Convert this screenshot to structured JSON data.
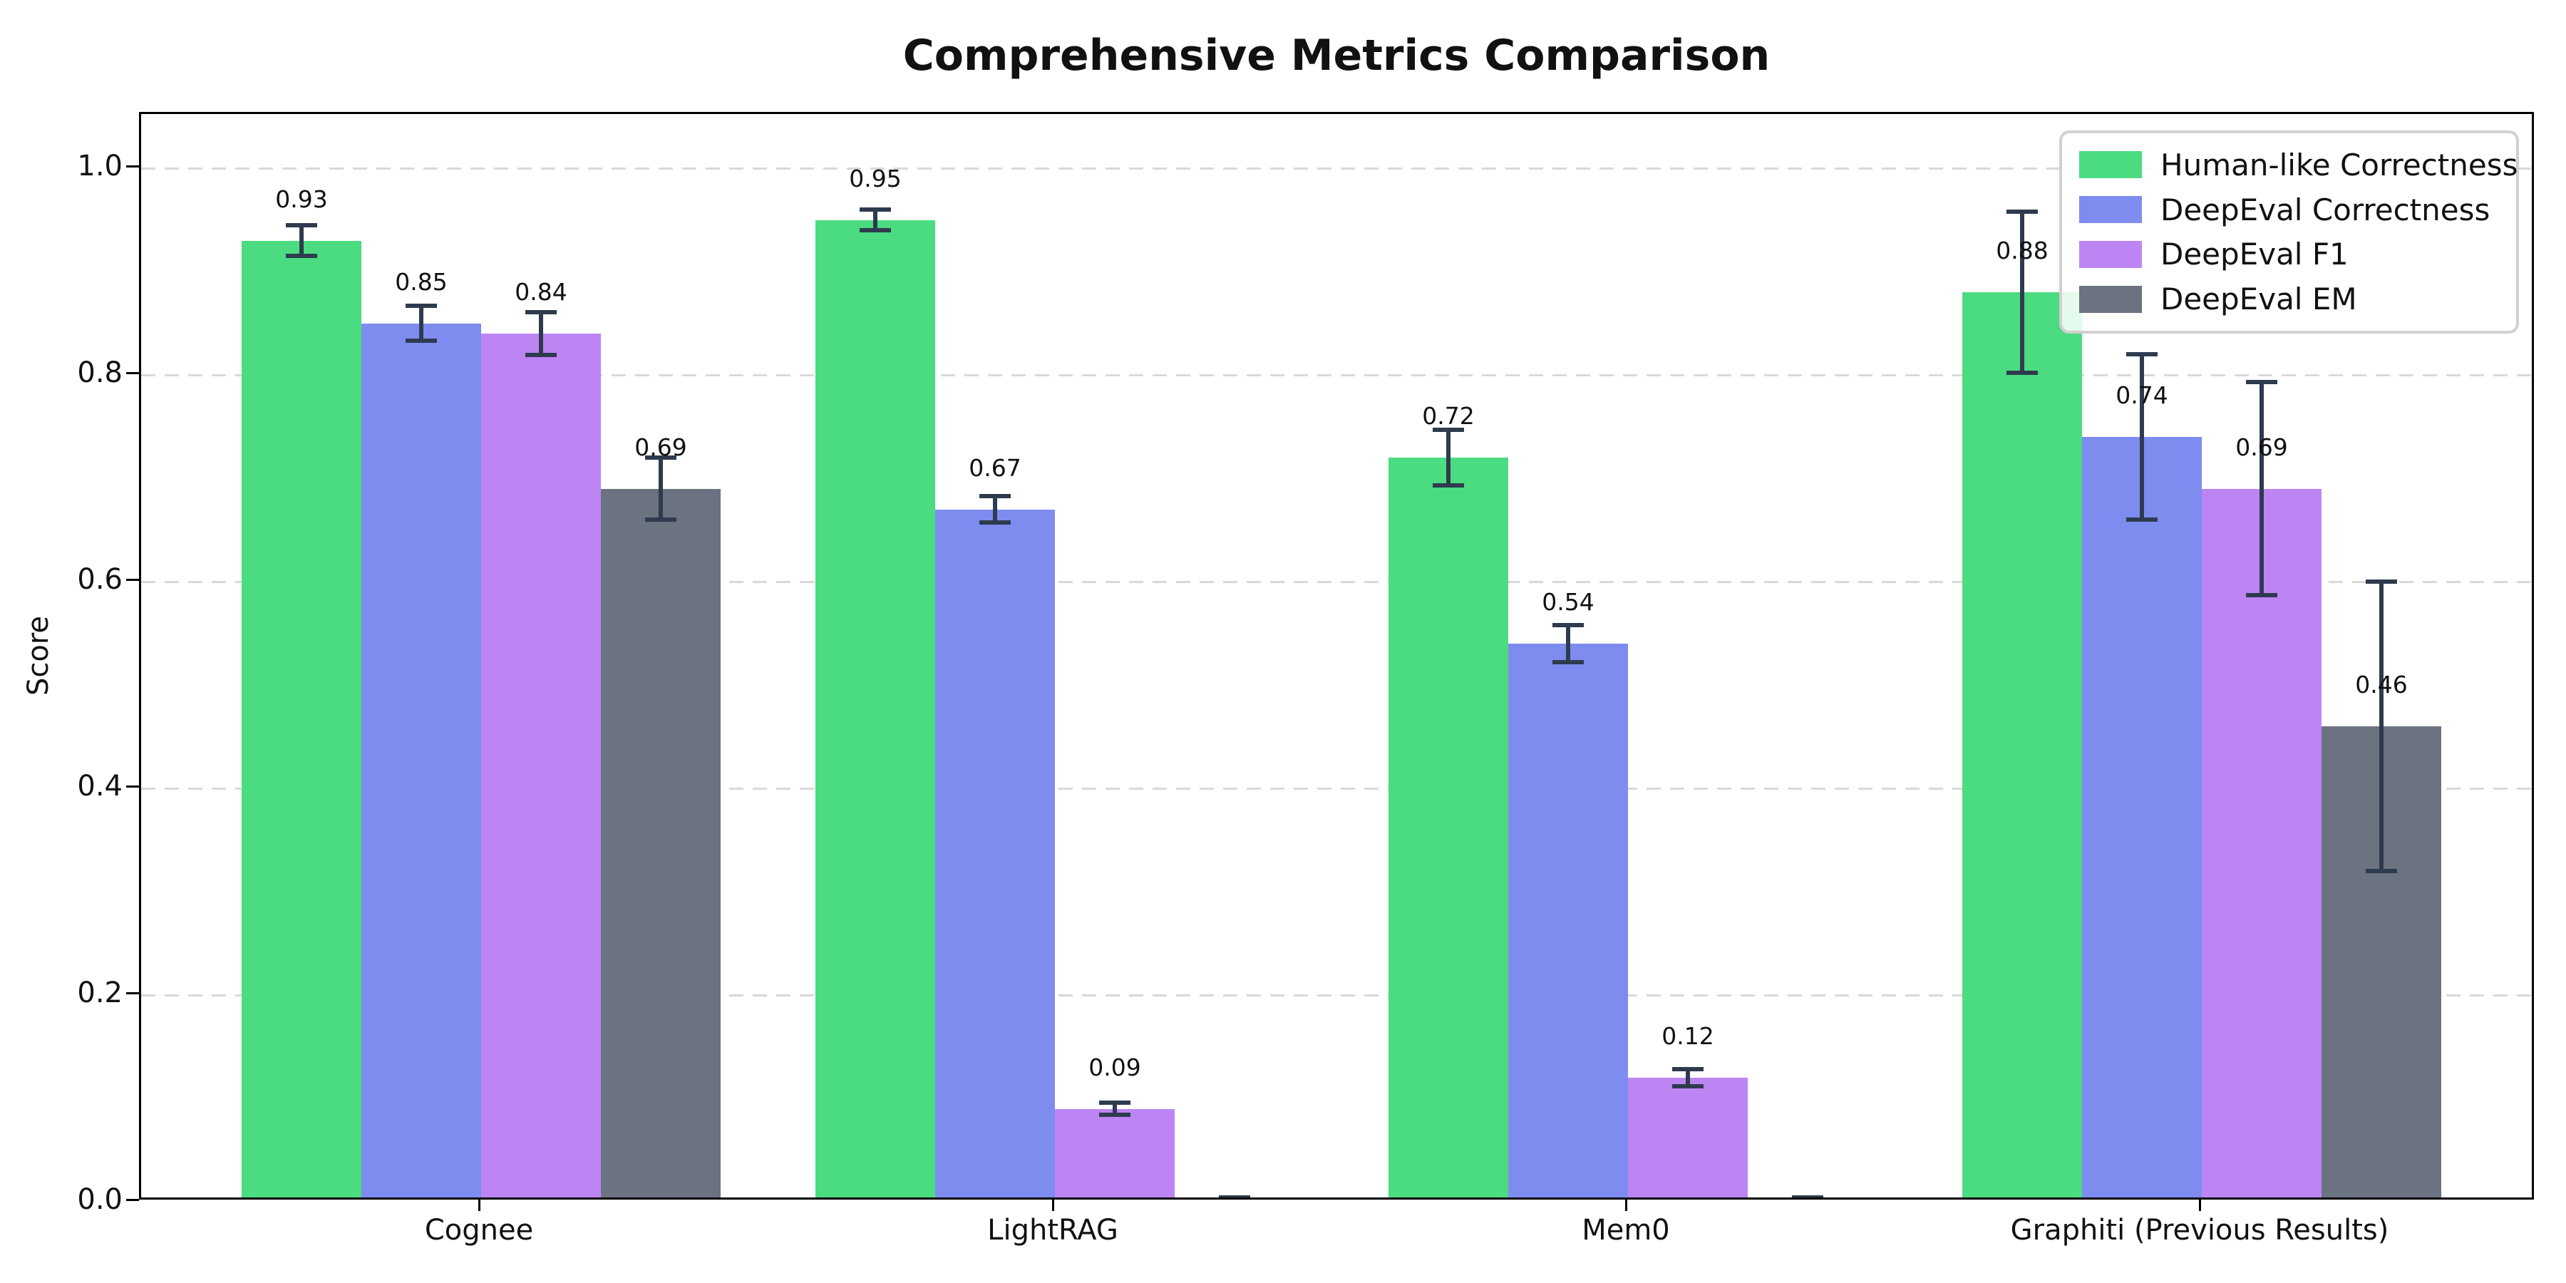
{
  "chart_data": {
    "type": "bar",
    "title": "Comprehensive Metrics Comparison",
    "ylabel": "Score",
    "xlabel": "",
    "categories": [
      "Cognee",
      "LightRAG",
      "Mem0",
      "Graphiti (Previous Results)"
    ],
    "series": [
      {
        "name": "Human-like Correctness",
        "color": "#4bdb81",
        "values": [
          0.93,
          0.95,
          0.72,
          0.88
        ],
        "errors": [
          0.015,
          0.01,
          0.027,
          0.078
        ],
        "labels": [
          "0.93",
          "0.95",
          "0.72",
          "0.88"
        ]
      },
      {
        "name": "DeepEval Correctness",
        "color": "#7e8cf0",
        "values": [
          0.85,
          0.67,
          0.54,
          0.74
        ],
        "errors": [
          0.017,
          0.013,
          0.018,
          0.08
        ],
        "labels": [
          "0.85",
          "0.67",
          "0.54",
          "0.74"
        ]
      },
      {
        "name": "DeepEval F1",
        "color": "#bd85f4",
        "values": [
          0.84,
          0.09,
          0.12,
          0.69
        ],
        "errors": [
          0.021,
          0.006,
          0.008,
          0.103
        ],
        "labels": [
          "0.84",
          "0.09",
          "0.12",
          "0.69"
        ]
      },
      {
        "name": "DeepEval EM",
        "color": "#6b7280",
        "values": [
          0.69,
          0.0,
          0.0,
          0.46
        ],
        "errors": [
          0.03,
          0.004,
          0.004,
          0.14
        ],
        "labels": [
          "0.69",
          "",
          "",
          "0.46"
        ]
      }
    ],
    "yticks": [
      "0.0",
      "0.2",
      "0.4",
      "0.6",
      "0.8",
      "1.0"
    ],
    "ylim": [
      0.0,
      1.05
    ],
    "grid": "horizontal-dashed",
    "gridline_color": "#d9d9d9",
    "legend_position": "upper-right",
    "error_bar_color": "#2e3b4e",
    "axis_color": "#000000",
    "background_color": "#ffffff"
  }
}
